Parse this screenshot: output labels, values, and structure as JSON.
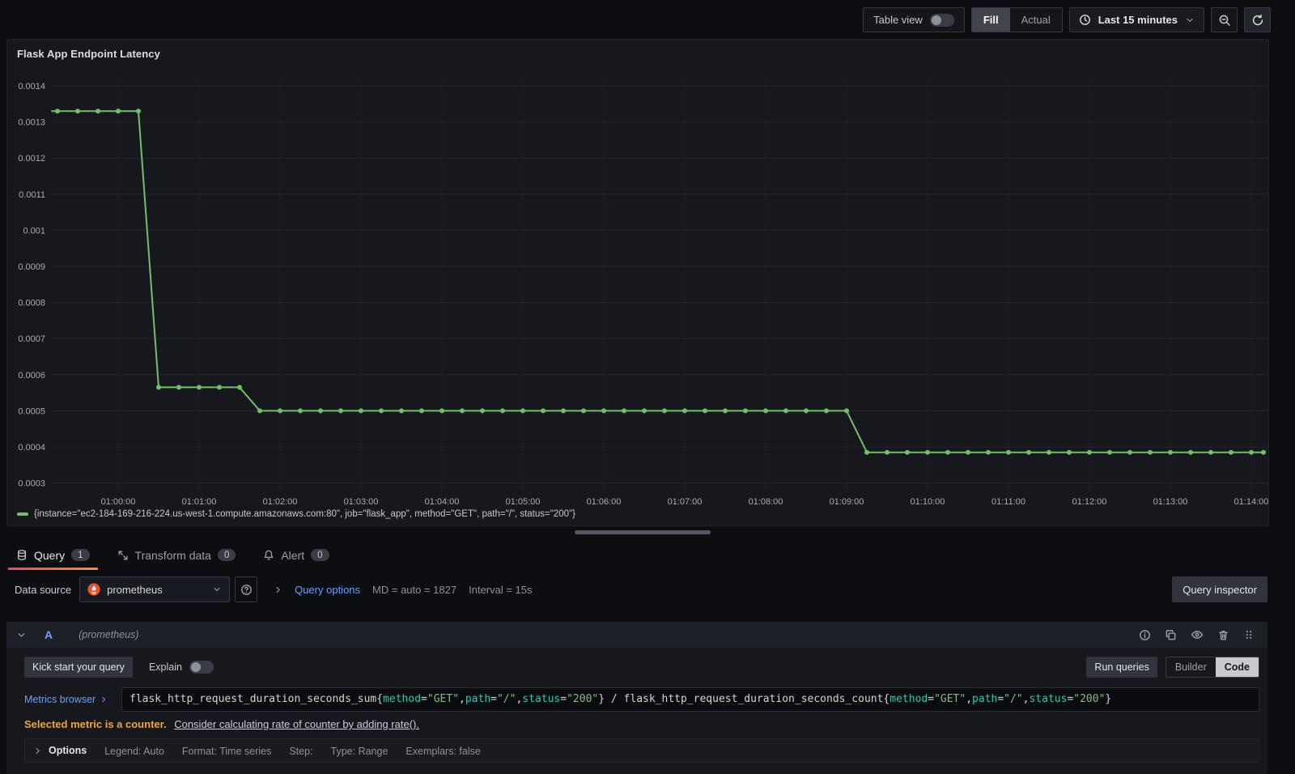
{
  "toolbar": {
    "table_view_label": "Table view",
    "fill_label": "Fill",
    "actual_label": "Actual",
    "time_range_label": "Last 15 minutes"
  },
  "panel": {
    "title": "Flask App Endpoint Latency",
    "legend": "{instance=\"ec2-184-169-216-224.us-west-1.compute.amazonaws.com:80\", job=\"flask_app\", method=\"GET\", path=\"/\", status=\"200\"}"
  },
  "chart_data": {
    "type": "line",
    "title": "Flask App Endpoint Latency",
    "color": "#73BF69",
    "interval_seconds": 15,
    "x_origin_label": "01:00:00",
    "x_ticks": [
      "01:00:00",
      "01:01:00",
      "01:02:00",
      "01:03:00",
      "01:04:00",
      "01:05:00",
      "01:06:00",
      "01:07:00",
      "01:08:00",
      "01:09:00",
      "01:10:00",
      "01:11:00",
      "01:12:00",
      "01:13:00",
      "01:14:00"
    ],
    "y_ticks": [
      "0.0014",
      "0.0013",
      "0.0012",
      "0.0011",
      "0.001",
      "0.0009",
      "0.0008",
      "0.0007",
      "0.0006",
      "0.0005",
      "0.0004",
      "0.0003"
    ],
    "y_max": 0.0014,
    "y_step": 0.0001,
    "grid": true,
    "legend_position": "bottom",
    "series_name": "{instance=\"ec2-184-169-216-224.us-west-1.compute.amazonaws.com:80\", job=\"flask_app\", method=\"GET\", path=\"/\", status=\"200\"}",
    "segments": [
      {
        "start_offset_s": -45,
        "end_offset_s": 15,
        "value": 0.00133
      },
      {
        "start_offset_s": 30,
        "end_offset_s": 90,
        "value": 0.000565
      },
      {
        "start_offset_s": 105,
        "end_offset_s": 540,
        "value": 0.0005
      },
      {
        "start_offset_s": 555,
        "end_offset_s": 855,
        "value": 0.000385
      }
    ]
  },
  "tabs": [
    {
      "label": "Query",
      "count": "1"
    },
    {
      "label": "Transform data",
      "count": "0"
    },
    {
      "label": "Alert",
      "count": "0"
    }
  ],
  "datasource_row": {
    "label": "Data source",
    "selected": "prometheus",
    "query_options_label": "Query options",
    "max_data_points": "MD = auto = 1827",
    "interval": "Interval = 15s",
    "inspector_label": "Query inspector"
  },
  "query_row": {
    "ref_id": "A",
    "datasource_hint": "(prometheus)"
  },
  "editor": {
    "kick_start_label": "Kick start your query",
    "explain_label": "Explain",
    "run_queries_label": "Run queries",
    "builder_label": "Builder",
    "code_label": "Code",
    "metrics_browser_label": "Metrics browser",
    "query_tokens": [
      {
        "c": "plain",
        "t": "flask_http_request_duration_seconds_sum{"
      },
      {
        "c": "label",
        "t": "method"
      },
      {
        "c": "plain",
        "t": "="
      },
      {
        "c": "string",
        "t": "\"GET\""
      },
      {
        "c": "plain",
        "t": ","
      },
      {
        "c": "label",
        "t": "path"
      },
      {
        "c": "plain",
        "t": "="
      },
      {
        "c": "string",
        "t": "\"/\""
      },
      {
        "c": "plain",
        "t": ","
      },
      {
        "c": "label",
        "t": "status"
      },
      {
        "c": "plain",
        "t": "="
      },
      {
        "c": "string",
        "t": "\"200\""
      },
      {
        "c": "plain",
        "t": "} / flask_http_request_duration_seconds_count{"
      },
      {
        "c": "label",
        "t": "method"
      },
      {
        "c": "plain",
        "t": "="
      },
      {
        "c": "string",
        "t": "\"GET\""
      },
      {
        "c": "plain",
        "t": ","
      },
      {
        "c": "label",
        "t": "path"
      },
      {
        "c": "plain",
        "t": "="
      },
      {
        "c": "string",
        "t": "\"/\""
      },
      {
        "c": "plain",
        "t": ","
      },
      {
        "c": "label",
        "t": "status"
      },
      {
        "c": "plain",
        "t": "="
      },
      {
        "c": "string",
        "t": "\"200\""
      },
      {
        "c": "plain",
        "t": "}"
      }
    ],
    "warning_text": "Selected metric is a counter.",
    "warning_link": "Consider calculating rate of counter by adding rate().",
    "options_label": "Options",
    "options_summary": [
      "Legend: Auto",
      "Format: Time series",
      "Step:",
      "Type: Range",
      "Exemplars: false"
    ]
  }
}
